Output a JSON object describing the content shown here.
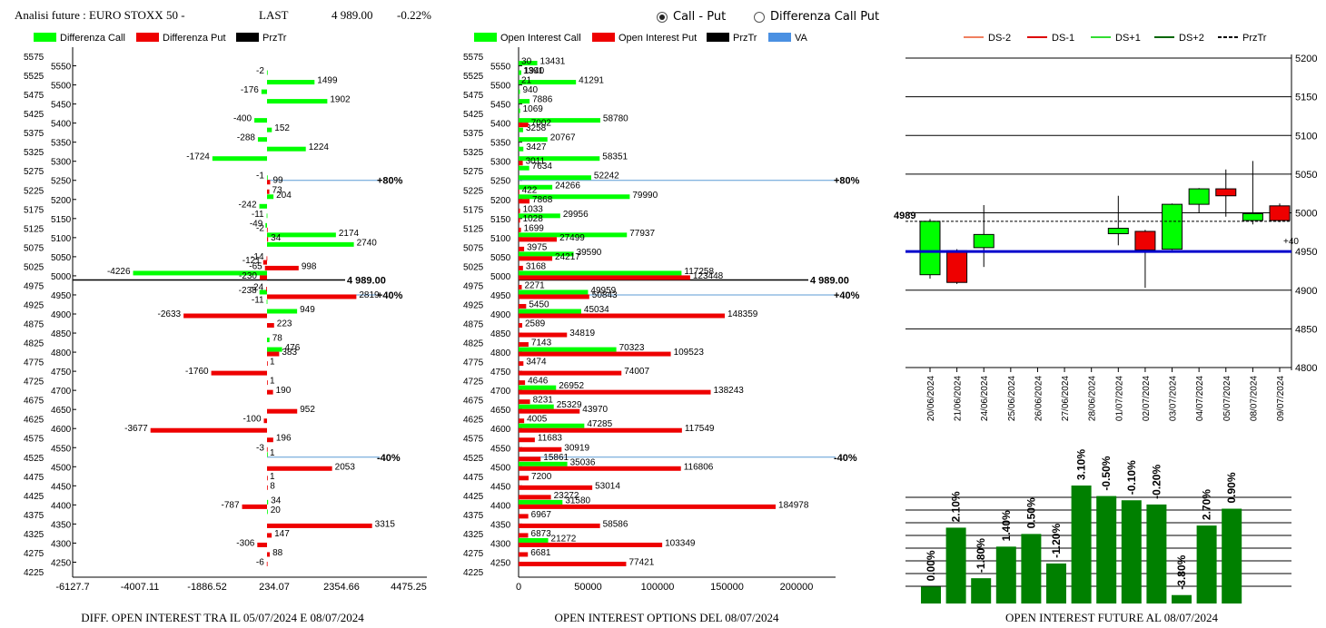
{
  "header": {
    "title": "Analisi future : EURO STOXX 50 -",
    "last_label": "LAST",
    "last_value": "4 989.00",
    "change": "-0.22%"
  },
  "radio": {
    "option1": "Call - Put",
    "option2": "Differenza Call Put",
    "selected": "Call - Put"
  },
  "colors": {
    "green": "#00ff00",
    "red": "#ee0000",
    "darkgreen": "#008000",
    "blue": "#0000cc",
    "ref_line": "#5b9bd5"
  },
  "chart_data": [
    {
      "id": "diff",
      "type": "bar",
      "title": "DIFF. OPEN INTEREST TRA IL 05/07/2024 E 08/07/2024",
      "legend": [
        "Differenza Call",
        "Differenza Put",
        "PrzTr"
      ],
      "strikes": [
        5575,
        5550,
        5525,
        5500,
        5475,
        5450,
        5425,
        5400,
        5375,
        5350,
        5325,
        5300,
        5275,
        5250,
        5225,
        5200,
        5175,
        5150,
        5125,
        5100,
        5075,
        5050,
        5025,
        5000,
        4975,
        4950,
        4925,
        4900,
        4875,
        4850,
        4825,
        4800,
        4775,
        4750,
        4725,
        4700,
        4675,
        4650,
        4625,
        4600,
        4575,
        4550,
        4525,
        4500,
        4475,
        4450,
        4425,
        4400,
        4375,
        4350,
        4325,
        4300,
        4275,
        4250,
        4225
      ],
      "labeled_strikes": [
        5575,
        5525,
        5475,
        5425,
        5375,
        5325,
        5275,
        5225,
        5175,
        5125,
        5075,
        5025,
        4975,
        4925,
        4875,
        4825,
        4775,
        4725,
        4675,
        4625,
        4575,
        4525,
        4475,
        4425,
        4375,
        4325,
        4275,
        4225
      ],
      "mid_strikes": [
        5550,
        5500,
        5450,
        5400,
        5350,
        5300,
        5250,
        5200,
        5150,
        5100,
        5050,
        5000,
        4950,
        4900,
        4850,
        4800,
        4750,
        4700,
        4650,
        4600,
        4550,
        4500,
        4450,
        4400,
        4350,
        4300,
        4250
      ],
      "call": [
        {
          "s": 5525,
          "v": -2
        },
        {
          "s": 5500,
          "v": 1499
        },
        {
          "s": 5475,
          "v": -176
        },
        {
          "s": 5450,
          "v": 1902
        },
        {
          "s": 5400,
          "v": -400
        },
        {
          "s": 5375,
          "v": 152
        },
        {
          "s": 5350,
          "v": -288
        },
        {
          "s": 5325,
          "v": 1224
        },
        {
          "s": 5300,
          "v": -1724
        },
        {
          "s": 5250,
          "v": -1
        },
        {
          "s": 5200,
          "v": 204
        },
        {
          "s": 5175,
          "v": -242
        },
        {
          "s": 5150,
          "v": -11
        },
        {
          "s": 5125,
          "v": -49
        },
        {
          "s": 5100,
          "v": 2174
        },
        {
          "s": 5075,
          "v": 2740
        },
        {
          "s": 5000,
          "v": -4226
        },
        {
          "s": 4950,
          "v": -238
        },
        {
          "s": 4925,
          "v": -11
        },
        {
          "s": 4900,
          "v": 949
        },
        {
          "s": 4825,
          "v": 78
        },
        {
          "s": 4800,
          "v": 476
        },
        {
          "s": 4525,
          "v": 1
        },
        {
          "s": 4400,
          "v": 34
        },
        {
          "s": 4375,
          "v": 20
        }
      ],
      "put": [
        {
          "s": 5250,
          "v": 99
        },
        {
          "s": 5225,
          "v": 73
        },
        {
          "s": 5125,
          "v": -2
        },
        {
          "s": 5100,
          "v": 34
        },
        {
          "s": 5050,
          "v": -14
        },
        {
          "s": 5040,
          "v": -121
        },
        {
          "s": 5025,
          "v": -65
        },
        {
          "s": 5025,
          "v": 998
        },
        {
          "s": 5000,
          "v": -230
        },
        {
          "s": 4970,
          "v": -24
        },
        {
          "s": 4950,
          "v": 2819
        },
        {
          "s": 4900,
          "v": -2633
        },
        {
          "s": 4875,
          "v": 223
        },
        {
          "s": 4800,
          "v": 383
        },
        {
          "s": 4775,
          "v": 1
        },
        {
          "s": 4750,
          "v": -1760
        },
        {
          "s": 4725,
          "v": 1
        },
        {
          "s": 4700,
          "v": 190
        },
        {
          "s": 4650,
          "v": 952
        },
        {
          "s": 4625,
          "v": -100
        },
        {
          "s": 4600,
          "v": -3677
        },
        {
          "s": 4575,
          "v": 196
        },
        {
          "s": 4550,
          "v": -3
        },
        {
          "s": 4500,
          "v": 2053
        },
        {
          "s": 4475,
          "v": 1
        },
        {
          "s": 4450,
          "v": 8
        },
        {
          "s": 4400,
          "v": -787
        },
        {
          "s": 4350,
          "v": 3315
        },
        {
          "s": 4325,
          "v": 147
        },
        {
          "s": 4300,
          "v": -306
        },
        {
          "s": 4275,
          "v": 88
        },
        {
          "s": 4250,
          "v": -6
        }
      ],
      "xticks": [
        "-6127.7",
        "-4007.11",
        "-1886.52",
        "234.07",
        "2354.66",
        "4475.25"
      ],
      "xlim": [
        -6127.7,
        4475.25
      ],
      "ref_lines": [
        {
          "s": 5250,
          "label": "+80%"
        },
        {
          "s": 4950,
          "label": "+40%"
        },
        {
          "s": 4525,
          "label": "-40%"
        }
      ],
      "price_line": {
        "s": 4989,
        "label": "4 989.00"
      }
    },
    {
      "id": "oi",
      "type": "bar",
      "title": "OPEN INTEREST OPTIONS DEL 08/07/2024",
      "legend": [
        "Open Interest Call",
        "Open Interest Put",
        "PrzTr",
        "VA"
      ],
      "call": [
        {
          "s": 5550,
          "v": 13431
        },
        {
          "s": 5550,
          "v": 30
        },
        {
          "s": 5525,
          "v": 1940
        },
        {
          "s": 5525,
          "v": 1391
        },
        {
          "s": 5500,
          "v": 41291
        },
        {
          "s": 5500,
          "v": 21
        },
        {
          "s": 5475,
          "v": 940
        },
        {
          "s": 5450,
          "v": 7886
        },
        {
          "s": 5425,
          "v": 1069
        },
        {
          "s": 5400,
          "v": 58780
        },
        {
          "s": 5375,
          "v": 3258
        },
        {
          "s": 5350,
          "v": 20767
        },
        {
          "s": 5325,
          "v": 3427
        },
        {
          "s": 5300,
          "v": 58351
        },
        {
          "s": 5275,
          "v": 7634
        },
        {
          "s": 5250,
          "v": 52242
        },
        {
          "s": 5225,
          "v": 24266
        },
        {
          "s": 5200,
          "v": 79990
        },
        {
          "s": 5150,
          "v": 29956
        },
        {
          "s": 5100,
          "v": 77937
        },
        {
          "s": 5050,
          "v": 39590
        },
        {
          "s": 5000,
          "v": 117258
        },
        {
          "s": 4950,
          "v": 49959
        },
        {
          "s": 4900,
          "v": 45034
        },
        {
          "s": 4800,
          "v": 70323
        },
        {
          "s": 4700,
          "v": 26952
        },
        {
          "s": 4650,
          "v": 25329
        },
        {
          "s": 4600,
          "v": 47285
        },
        {
          "s": 4500,
          "v": 35036
        },
        {
          "s": 4400,
          "v": 31580
        },
        {
          "s": 4300,
          "v": 21272
        }
      ],
      "put": [
        {
          "s": 5400,
          "v": 7002
        },
        {
          "s": 5300,
          "v": 3011
        },
        {
          "s": 5225,
          "v": 422
        },
        {
          "s": 5200,
          "v": 7868
        },
        {
          "s": 5175,
          "v": 1033
        },
        {
          "s": 5150,
          "v": 1028
        },
        {
          "s": 5125,
          "v": 1699
        },
        {
          "s": 5100,
          "v": 27499
        },
        {
          "s": 5075,
          "v": 3975
        },
        {
          "s": 5050,
          "v": 24217
        },
        {
          "s": 5025,
          "v": 3168
        },
        {
          "s": 5000,
          "v": 123448
        },
        {
          "s": 4975,
          "v": 2271
        },
        {
          "s": 4950,
          "v": 50843
        },
        {
          "s": 4925,
          "v": 5450
        },
        {
          "s": 4900,
          "v": 148359
        },
        {
          "s": 4875,
          "v": 2589
        },
        {
          "s": 4850,
          "v": 34819
        },
        {
          "s": 4825,
          "v": 7143
        },
        {
          "s": 4800,
          "v": 109523
        },
        {
          "s": 4775,
          "v": 3474
        },
        {
          "s": 4750,
          "v": 74007
        },
        {
          "s": 4725,
          "v": 4646
        },
        {
          "s": 4700,
          "v": 138243
        },
        {
          "s": 4675,
          "v": 8231
        },
        {
          "s": 4650,
          "v": 43970
        },
        {
          "s": 4625,
          "v": 4005
        },
        {
          "s": 4600,
          "v": 117549
        },
        {
          "s": 4575,
          "v": 11683
        },
        {
          "s": 4550,
          "v": 30919
        },
        {
          "s": 4525,
          "v": 15861
        },
        {
          "s": 4500,
          "v": 116806
        },
        {
          "s": 4475,
          "v": 7200
        },
        {
          "s": 4450,
          "v": 53014
        },
        {
          "s": 4425,
          "v": 23272
        },
        {
          "s": 4400,
          "v": 184978
        },
        {
          "s": 4375,
          "v": 6967
        },
        {
          "s": 4350,
          "v": 58586
        },
        {
          "s": 4325,
          "v": 6873
        },
        {
          "s": 4300,
          "v": 103349
        },
        {
          "s": 4275,
          "v": 6681
        },
        {
          "s": 4250,
          "v": 77421
        }
      ],
      "xticks": [
        "0",
        "50000",
        "100000",
        "150000",
        "200000"
      ],
      "xlim": [
        0,
        220000
      ],
      "ref_lines": [
        {
          "s": 5250,
          "label": "+80%"
        },
        {
          "s": 4950,
          "label": "+40%"
        },
        {
          "s": 4525,
          "label": "-40%"
        }
      ],
      "price_line": {
        "s": 4989,
        "label": "4 989.00"
      }
    },
    {
      "id": "candles",
      "type": "candlestick",
      "legend": [
        "DS-2",
        "DS-1",
        "DS+1",
        "DS+2",
        "PrzTr"
      ],
      "yticks": [
        5200,
        5150,
        5100,
        5050,
        5000,
        4950,
        4900,
        4850,
        4800
      ],
      "ylim": [
        4800,
        5200
      ],
      "dates": [
        "20/06/2024",
        "21/06/2024",
        "24/06/2024",
        "25/06/2024",
        "26/06/2024",
        "27/06/2024",
        "28/06/2024",
        "01/07/2024",
        "02/07/2024",
        "03/07/2024",
        "04/07/2024",
        "05/07/2024",
        "08/07/2024",
        "09/07/2024"
      ],
      "ohlc": [
        {
          "d": 0,
          "o": 4920,
          "h": 4992,
          "l": 4915,
          "c": 4989
        },
        {
          "d": 1,
          "o": 4951,
          "h": 4953,
          "l": 4908,
          "c": 4910
        },
        {
          "d": 2,
          "o": 4955,
          "h": 5010,
          "l": 4930,
          "c": 4972
        },
        {
          "d": 7,
          "o": 4973,
          "h": 5022,
          "l": 4958,
          "c": 4980
        },
        {
          "d": 8,
          "o": 4976,
          "h": 4978,
          "l": 4903,
          "c": 4952
        },
        {
          "d": 9,
          "o": 4953,
          "h": 5012,
          "l": 4952,
          "c": 5011
        },
        {
          "d": 10,
          "o": 5011,
          "h": 5032,
          "l": 5000,
          "c": 5031
        },
        {
          "d": 11,
          "o": 5031,
          "h": 5056,
          "l": 4995,
          "c": 5022
        },
        {
          "d": 12,
          "o": 4990,
          "h": 5067,
          "l": 4985,
          "c": 4999
        },
        {
          "d": 13,
          "o": 5009,
          "h": 5012,
          "l": 4988,
          "c": 4990
        }
      ],
      "price_label": "4989",
      "price": 4989,
      "blue_line": 4950,
      "blue_label": "+40"
    },
    {
      "id": "fut",
      "type": "bar",
      "title": "OPEN INTEREST FUTURE AL 08/07/2024",
      "labels": [
        "0.00%",
        "2.10%",
        "-1.80%",
        "1.40%",
        "0.50%",
        "-1.20%",
        "3.10%",
        "-0.50%",
        "-0.10%",
        "-0.20%",
        "-3.80%",
        "2.70%",
        "0.90%"
      ],
      "values": [
        0.8,
        3.6,
        1.2,
        2.7,
        3.3,
        1.9,
        5.6,
        5.1,
        4.9,
        4.7,
        0.4,
        3.7,
        4.5
      ]
    }
  ]
}
